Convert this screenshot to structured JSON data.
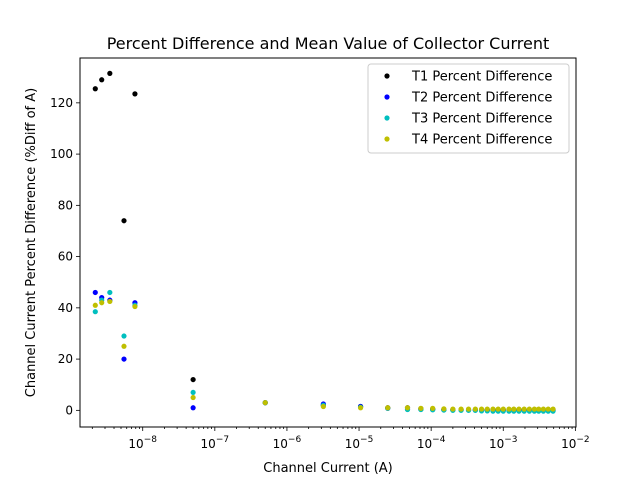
{
  "chart_data": {
    "type": "scatter",
    "title": "Percent Difference and Mean Value of Collector Current",
    "xlabel": "Channel Current (A)",
    "ylabel": "Channel Current Percent Difference (%Diff of A)",
    "xscale": "log",
    "xlim": [
      1.35e-09,
      0.0102
    ],
    "ylim": [
      -6.5,
      137.5
    ],
    "grid": false,
    "legend_position": "top-right",
    "x_ticks": [
      {
        "value": 1e-08,
        "base": "10",
        "exp": "−8"
      },
      {
        "value": 1e-07,
        "base": "10",
        "exp": "−7"
      },
      {
        "value": 1e-06,
        "base": "10",
        "exp": "−6"
      },
      {
        "value": 1e-05,
        "base": "10",
        "exp": "−5"
      },
      {
        "value": 0.0001,
        "base": "10",
        "exp": "−4"
      },
      {
        "value": 0.001,
        "base": "10",
        "exp": "−3"
      },
      {
        "value": 0.01,
        "base": "10",
        "exp": "−2"
      }
    ],
    "y_ticks": [
      0,
      20,
      40,
      60,
      80,
      100,
      120
    ],
    "y_tick_labels": [
      "0",
      "20",
      "40",
      "60",
      "80",
      "100",
      "120"
    ],
    "series": [
      {
        "name": "T1 Percent Difference",
        "color": "#000000",
        "points": [
          [
            2.2e-09,
            125.5
          ],
          [
            2.7e-09,
            129
          ],
          [
            3.5e-09,
            131.5
          ],
          [
            5.5e-09,
            74
          ],
          [
            7.8e-09,
            123.5
          ],
          [
            5e-08,
            12
          ],
          [
            5e-07,
            3
          ],
          [
            3.2e-06,
            2
          ],
          [
            1.05e-05,
            1.5
          ],
          [
            2.5e-05,
            1
          ],
          [
            4.7e-05,
            1
          ],
          [
            7.2e-05,
            0.7
          ],
          [
            0.000105,
            0.5
          ],
          [
            0.00015,
            0.3
          ],
          [
            0.0002,
            0.2
          ],
          [
            0.00026,
            0.2
          ],
          [
            0.00033,
            0.2
          ],
          [
            0.00041,
            0.2
          ],
          [
            0.0005,
            0.2
          ],
          [
            0.0006,
            0.2
          ],
          [
            0.00072,
            0.2
          ],
          [
            0.00085,
            0.2
          ],
          [
            0.001,
            0.2
          ],
          [
            0.0012,
            0.2
          ],
          [
            0.0014,
            0.2
          ],
          [
            0.00165,
            0.2
          ],
          [
            0.00195,
            0.2
          ],
          [
            0.0023,
            0.2
          ],
          [
            0.0027,
            0.2
          ],
          [
            0.0031,
            0.2
          ],
          [
            0.0036,
            0.2
          ],
          [
            0.0042,
            0.2
          ],
          [
            0.0049,
            0.2
          ]
        ]
      },
      {
        "name": "T2 Percent Difference",
        "color": "#0000ff",
        "points": [
          [
            2.2e-09,
            46
          ],
          [
            2.7e-09,
            44
          ],
          [
            3.5e-09,
            43
          ],
          [
            5.5e-09,
            20
          ],
          [
            7.8e-09,
            42
          ],
          [
            5e-08,
            1
          ],
          [
            5e-07,
            3
          ],
          [
            3.2e-06,
            2.5
          ],
          [
            1.05e-05,
            1.5
          ],
          [
            2.5e-05,
            0.8
          ],
          [
            4.7e-05,
            0.5
          ],
          [
            7.2e-05,
            0.4
          ],
          [
            0.000105,
            0.3
          ],
          [
            0.00015,
            0.2
          ],
          [
            0.0002,
            0.2
          ],
          [
            0.00026,
            0.2
          ],
          [
            0.00033,
            0.1
          ],
          [
            0.00041,
            0.1
          ],
          [
            0.0005,
            0.1
          ],
          [
            0.0006,
            0.1
          ],
          [
            0.00072,
            0.1
          ],
          [
            0.00085,
            0.1
          ],
          [
            0.001,
            0.1
          ],
          [
            0.0012,
            0.1
          ],
          [
            0.0014,
            0.1
          ],
          [
            0.00165,
            0.1
          ],
          [
            0.00195,
            0.1
          ],
          [
            0.0023,
            0.1
          ],
          [
            0.0027,
            0.1
          ],
          [
            0.0031,
            0.1
          ],
          [
            0.0036,
            0.1
          ],
          [
            0.0042,
            0.1
          ],
          [
            0.0049,
            0.1
          ]
        ]
      },
      {
        "name": "T3 Percent Difference",
        "color": "#00bfbf",
        "points": [
          [
            2.2e-09,
            38.5
          ],
          [
            2.7e-09,
            43
          ],
          [
            3.5e-09,
            46
          ],
          [
            5.5e-09,
            29
          ],
          [
            7.8e-09,
            41
          ],
          [
            5e-08,
            7
          ],
          [
            5e-07,
            3
          ],
          [
            3.2e-06,
            2
          ],
          [
            1.05e-05,
            1.2
          ],
          [
            2.5e-05,
            0.8
          ],
          [
            4.7e-05,
            0.3
          ],
          [
            7.2e-05,
            0.3
          ],
          [
            0.000105,
            0.2
          ],
          [
            0.00015,
            0.1
          ],
          [
            0.0002,
            0
          ],
          [
            0.00026,
            0
          ],
          [
            0.00033,
            0
          ],
          [
            0.00041,
            0
          ],
          [
            0.0005,
            -0.2
          ],
          [
            0.0006,
            -0.2
          ],
          [
            0.00072,
            -0.3
          ],
          [
            0.00085,
            -0.3
          ],
          [
            0.001,
            -0.3
          ],
          [
            0.0012,
            -0.3
          ],
          [
            0.0014,
            -0.3
          ],
          [
            0.00165,
            -0.3
          ],
          [
            0.00195,
            -0.3
          ],
          [
            0.0023,
            -0.3
          ],
          [
            0.0027,
            -0.3
          ],
          [
            0.0031,
            -0.3
          ],
          [
            0.0036,
            -0.3
          ],
          [
            0.0042,
            -0.3
          ],
          [
            0.0049,
            -0.3
          ]
        ]
      },
      {
        "name": "T4 Percent Difference",
        "color": "#bfbf00",
        "points": [
          [
            2.2e-09,
            41
          ],
          [
            2.7e-09,
            42
          ],
          [
            3.5e-09,
            42.5
          ],
          [
            5.5e-09,
            25
          ],
          [
            7.8e-09,
            40.5
          ],
          [
            5e-08,
            5
          ],
          [
            5e-07,
            3
          ],
          [
            3.2e-06,
            1.5
          ],
          [
            1.05e-05,
            1
          ],
          [
            2.5e-05,
            1
          ],
          [
            4.7e-05,
            1
          ],
          [
            7.2e-05,
            0.8
          ],
          [
            0.000105,
            0.8
          ],
          [
            0.00015,
            0.6
          ],
          [
            0.0002,
            0.5
          ],
          [
            0.00026,
            0.5
          ],
          [
            0.00033,
            0.5
          ],
          [
            0.00041,
            0.5
          ],
          [
            0.0005,
            0.5
          ],
          [
            0.0006,
            0.5
          ],
          [
            0.00072,
            0.5
          ],
          [
            0.00085,
            0.5
          ],
          [
            0.001,
            0.5
          ],
          [
            0.0012,
            0.5
          ],
          [
            0.0014,
            0.5
          ],
          [
            0.00165,
            0.5
          ],
          [
            0.00195,
            0.5
          ],
          [
            0.0023,
            0.5
          ],
          [
            0.0027,
            0.5
          ],
          [
            0.0031,
            0.5
          ],
          [
            0.0036,
            0.5
          ],
          [
            0.0042,
            0.5
          ],
          [
            0.0049,
            0.5
          ]
        ]
      }
    ]
  }
}
